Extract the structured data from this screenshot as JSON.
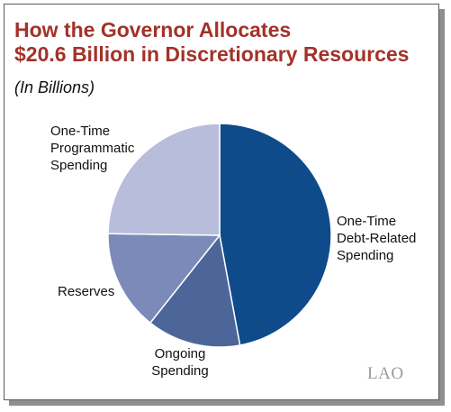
{
  "title_lines": [
    "How the Governor Allocates",
    "$20.6 Billion in Discretionary Resources"
  ],
  "subtitle": "(In Billions)",
  "logo_text": "LAO",
  "colors": {
    "title": "#a3322a",
    "slices": [
      "#0f4a8a",
      "#4d6699",
      "#7b8ab8",
      "#b7bdda"
    ],
    "stroke": "#ffffff"
  },
  "chart_data": {
    "type": "pie",
    "title": "How the Governor Allocates $20.6 Billion in Discretionary Resources",
    "subtitle": "(In Billions)",
    "unit": "Billions",
    "start_angle_deg": 0,
    "direction": "clockwise",
    "slices": [
      {
        "label_lines": [
          "One-Time",
          "Debt-Related",
          "Spending"
        ],
        "value": 9.7
      },
      {
        "label_lines": [
          "Ongoing",
          "Spending"
        ],
        "value": 2.8
      },
      {
        "label_lines": [
          "Reserves"
        ],
        "value": 3.0
      },
      {
        "label_lines": [
          "One-Time",
          "Programmatic",
          "Spending"
        ],
        "value": 5.1
      }
    ]
  }
}
